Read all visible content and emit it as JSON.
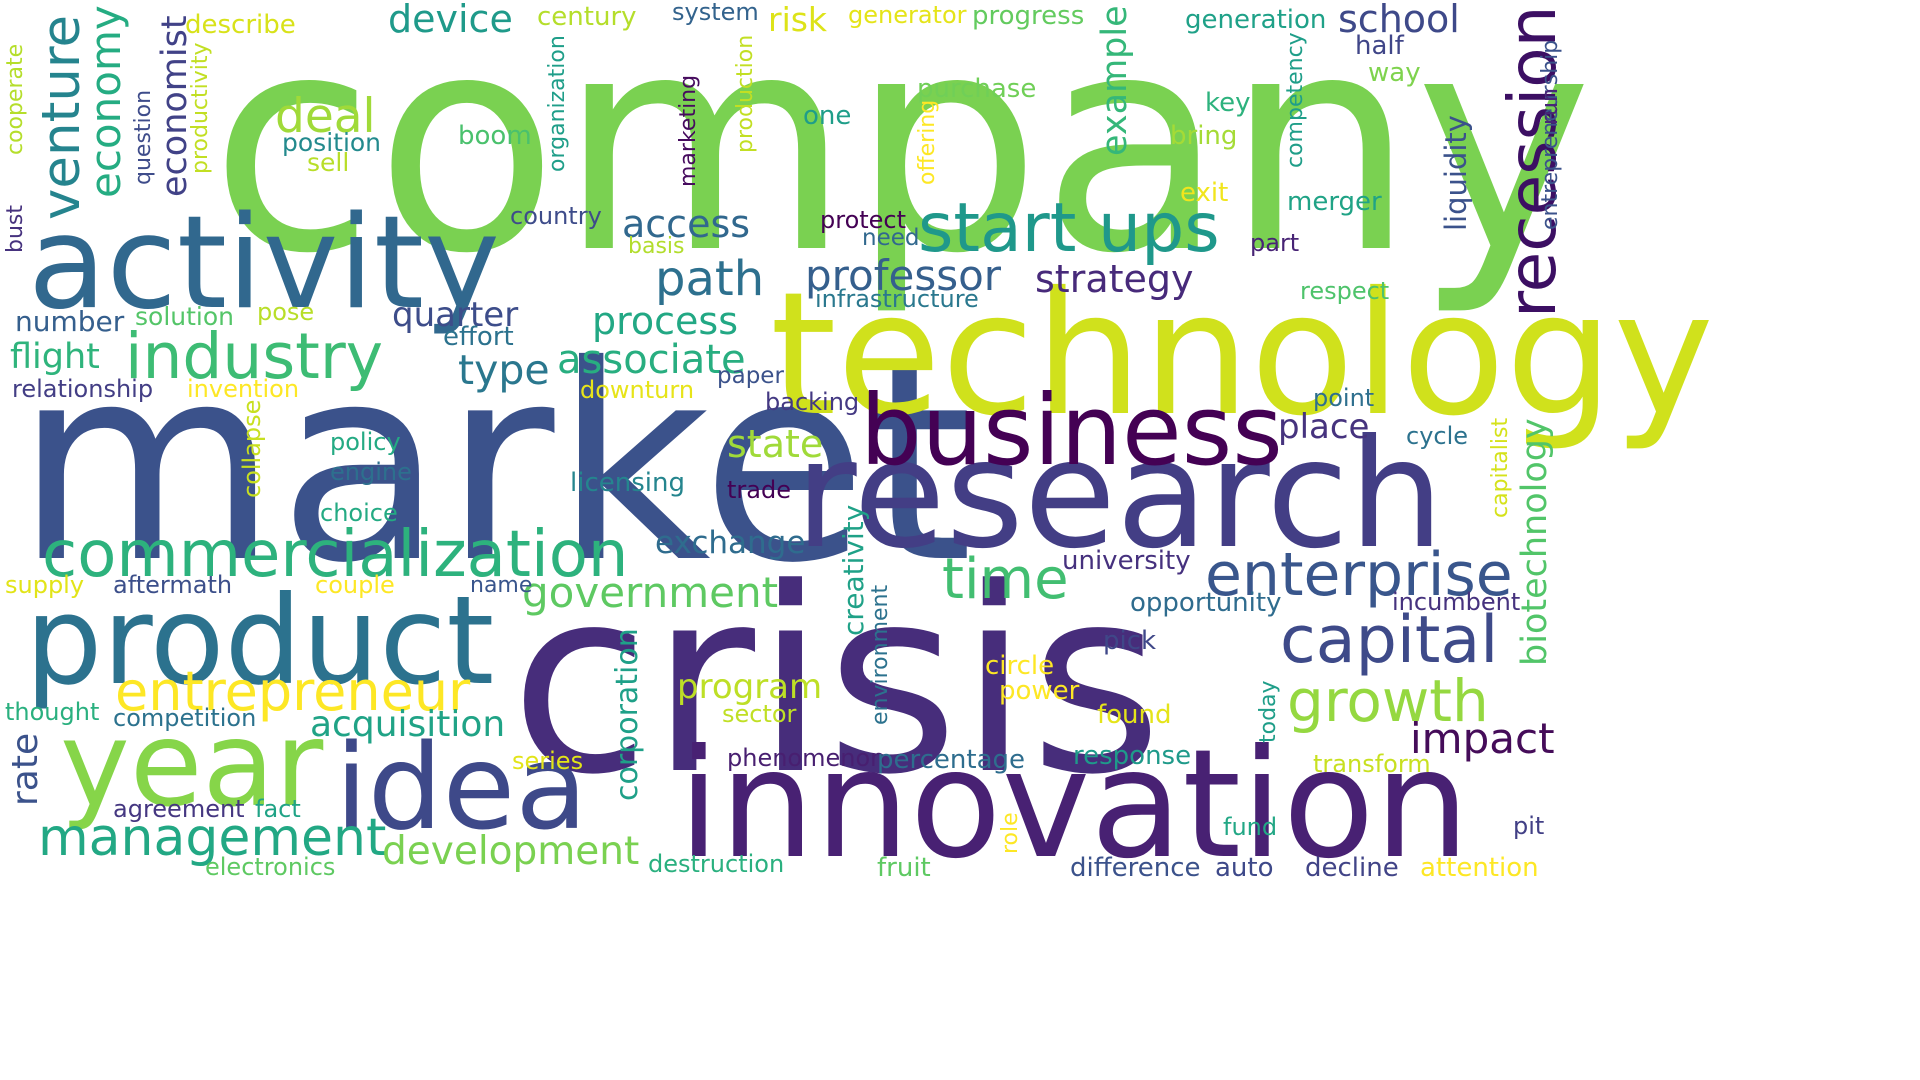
{
  "palette": [
    "#440154",
    "#482677",
    "#3f4a8a",
    "#31678e",
    "#26838f",
    "#1f9d8a",
    "#6cce5a",
    "#b6de2b",
    "#fee825"
  ],
  "words": [
    {
      "text": "company",
      "weight": 1.0,
      "color": "#7ad151",
      "orient": "h"
    },
    {
      "text": "market",
      "weight": 0.96,
      "color": "#3b528b",
      "orient": "h"
    },
    {
      "text": "crisis",
      "weight": 0.93,
      "color": "#472d7b",
      "orient": "h"
    },
    {
      "text": "technology",
      "weight": 0.8,
      "color": "#d0e11c",
      "orient": "h"
    },
    {
      "text": "research",
      "weight": 0.75,
      "color": "#433e85",
      "orient": "h"
    },
    {
      "text": "innovation",
      "weight": 0.75,
      "color": "#482173",
      "orient": "h"
    },
    {
      "text": "activity",
      "weight": 0.64,
      "color": "#31688e",
      "orient": "h"
    },
    {
      "text": "product",
      "weight": 0.6,
      "color": "#2c728e",
      "orient": "h"
    },
    {
      "text": "idea",
      "weight": 0.58,
      "color": "#3e4989",
      "orient": "h"
    },
    {
      "text": "year",
      "weight": 0.56,
      "color": "#86d549",
      "orient": "h"
    },
    {
      "text": "business",
      "weight": 0.48,
      "color": "#440154",
      "orient": "h"
    },
    {
      "text": "commercialization",
      "weight": 0.38,
      "color": "#2db27d",
      "orient": "h"
    },
    {
      "text": "industry",
      "weight": 0.36,
      "color": "#3dbc74",
      "orient": "h"
    },
    {
      "text": "capital",
      "weight": 0.36,
      "color": "#3e4a89",
      "orient": "h"
    },
    {
      "text": "enterprise",
      "weight": 0.34,
      "color": "#39568c",
      "orient": "h"
    },
    {
      "text": "start ups",
      "weight": 0.34,
      "color": "#1f988b",
      "orient": "h"
    },
    {
      "text": "time",
      "weight": 0.33,
      "color": "#42be71",
      "orient": "h"
    },
    {
      "text": "growth",
      "weight": 0.33,
      "color": "#95d840",
      "orient": "h"
    },
    {
      "text": "entrepreneur",
      "weight": 0.32,
      "color": "#fde725",
      "orient": "h"
    },
    {
      "text": "management",
      "weight": 0.3,
      "color": "#22a884",
      "orient": "h"
    },
    {
      "text": "recession",
      "weight": 0.31,
      "color": "#3c0f63",
      "orient": "v"
    },
    {
      "text": "venture",
      "weight": 0.28,
      "color": "#25848e",
      "orient": "v"
    },
    {
      "text": "economy",
      "weight": 0.28,
      "color": "#25ac82",
      "orient": "v"
    },
    {
      "text": "path",
      "weight": 0.27,
      "color": "#2d708e",
      "orient": "h"
    },
    {
      "text": "deal",
      "weight": 0.27,
      "color": "#a0da39",
      "orient": "h"
    },
    {
      "text": "professor",
      "weight": 0.25,
      "color": "#355f8d",
      "orient": "h"
    },
    {
      "text": "impact",
      "weight": 0.25,
      "color": "#450c59",
      "orient": "h"
    },
    {
      "text": "development",
      "weight": 0.23,
      "color": "#7ad151",
      "orient": "h"
    },
    {
      "text": "government",
      "weight": 0.23,
      "color": "#5ec962",
      "orient": "h"
    },
    {
      "text": "acquisition",
      "weight": 0.22,
      "color": "#20a386",
      "orient": "h"
    },
    {
      "text": "type",
      "weight": 0.22,
      "color": "#2a778e",
      "orient": "h"
    },
    {
      "text": "process",
      "weight": 0.22,
      "color": "#22a884",
      "orient": "h"
    },
    {
      "text": "associate",
      "weight": 0.22,
      "color": "#28ae80",
      "orient": "h"
    },
    {
      "text": "access",
      "weight": 0.22,
      "color": "#31688e",
      "orient": "h"
    },
    {
      "text": "strategy",
      "weight": 0.22,
      "color": "#472a7a",
      "orient": "h"
    },
    {
      "text": "state",
      "weight": 0.22,
      "color": "#a0da39",
      "orient": "h"
    },
    {
      "text": "program",
      "weight": 0.2,
      "color": "#bddf26",
      "orient": "h"
    },
    {
      "text": "exchange",
      "weight": 0.2,
      "color": "#2f6c8e",
      "orient": "h"
    },
    {
      "text": "place",
      "weight": 0.2,
      "color": "#46337e",
      "orient": "h"
    },
    {
      "text": "school",
      "weight": 0.22,
      "color": "#3e4989",
      "orient": "h"
    },
    {
      "text": "device",
      "weight": 0.2,
      "color": "#1f9a8a",
      "orient": "h"
    },
    {
      "text": "flight",
      "weight": 0.2,
      "color": "#2fb47c",
      "orient": "h"
    },
    {
      "text": "quarter",
      "weight": 0.2,
      "color": "#3d4d8a",
      "orient": "h"
    },
    {
      "text": "economist",
      "weight": 0.2,
      "color": "#414287",
      "orient": "v"
    },
    {
      "text": "example",
      "weight": 0.2,
      "color": "#35b779",
      "orient": "v"
    },
    {
      "text": "liquidity",
      "weight": 0.18,
      "color": "#3b528b",
      "orient": "v"
    },
    {
      "text": "biotechnology",
      "weight": 0.2,
      "color": "#52c569",
      "orient": "v"
    },
    {
      "text": "creativity",
      "weight": 0.2,
      "color": "#1fa187",
      "orient": "v"
    },
    {
      "text": "corporation",
      "weight": 0.18,
      "color": "#1fa088",
      "orient": "v"
    },
    {
      "text": "rate",
      "weight": 0.2,
      "color": "#3b528b",
      "orient": "v"
    },
    {
      "text": "number",
      "weight": 0.18,
      "color": "#355f8d",
      "orient": "h"
    },
    {
      "text": "risk",
      "weight": 0.17,
      "color": "#dde318",
      "orient": "h"
    },
    {
      "text": "infrastructure",
      "weight": 0.15,
      "color": "#2a788e",
      "orient": "h"
    },
    {
      "text": "generation",
      "weight": 0.15,
      "color": "#1fa188",
      "orient": "h"
    },
    {
      "text": "century",
      "weight": 0.15,
      "color": "#b5de2b",
      "orient": "h"
    },
    {
      "text": "system",
      "weight": 0.15,
      "color": "#33638d",
      "orient": "h"
    },
    {
      "text": "generator",
      "weight": 0.15,
      "color": "#e5e419",
      "orient": "h"
    },
    {
      "text": "progress",
      "weight": 0.15,
      "color": "#63cb5f",
      "orient": "h"
    },
    {
      "text": "describe",
      "weight": 0.15,
      "color": "#d8e219",
      "orient": "h"
    },
    {
      "text": "position",
      "weight": 0.15,
      "color": "#238a8d",
      "orient": "h"
    },
    {
      "text": "sell",
      "weight": 0.15,
      "color": "#b8de29",
      "orient": "h"
    },
    {
      "text": "boom",
      "weight": 0.15,
      "color": "#4ac16d",
      "orient": "h"
    },
    {
      "text": "one",
      "weight": 0.15,
      "color": "#1f9e89",
      "orient": "h"
    },
    {
      "text": "purchase",
      "weight": 0.15,
      "color": "#70cf57",
      "orient": "h"
    },
    {
      "text": "key",
      "weight": 0.15,
      "color": "#2db27d",
      "orient": "h"
    },
    {
      "text": "bring",
      "weight": 0.15,
      "color": "#a5db36",
      "orient": "h"
    },
    {
      "text": "half",
      "weight": 0.15,
      "color": "#404688",
      "orient": "h"
    },
    {
      "text": "way",
      "weight": 0.15,
      "color": "#7fd34e",
      "orient": "h"
    },
    {
      "text": "exit",
      "weight": 0.15,
      "color": "#f1e51d",
      "orient": "h"
    },
    {
      "text": "merger",
      "weight": 0.15,
      "color": "#20a386",
      "orient": "h"
    },
    {
      "text": "country",
      "weight": 0.15,
      "color": "#3e4c8a",
      "orient": "h"
    },
    {
      "text": "protect",
      "weight": 0.15,
      "color": "#440154",
      "orient": "h"
    },
    {
      "text": "need",
      "weight": 0.15,
      "color": "#31688e",
      "orient": "h"
    },
    {
      "text": "basis",
      "weight": 0.15,
      "color": "#b2dd2d",
      "orient": "h"
    },
    {
      "text": "part",
      "weight": 0.15,
      "color": "#482475",
      "orient": "h"
    },
    {
      "text": "respect",
      "weight": 0.15,
      "color": "#4ec36b",
      "orient": "h"
    },
    {
      "text": "solution",
      "weight": 0.15,
      "color": "#54c568",
      "orient": "h"
    },
    {
      "text": "pose",
      "weight": 0.15,
      "color": "#b8de29",
      "orient": "h"
    },
    {
      "text": "effort",
      "weight": 0.15,
      "color": "#2c728e",
      "orient": "h"
    },
    {
      "text": "relationship",
      "weight": 0.15,
      "color": "#433e85",
      "orient": "h"
    },
    {
      "text": "invention",
      "weight": 0.15,
      "color": "#fde725",
      "orient": "h"
    },
    {
      "text": "downturn",
      "weight": 0.15,
      "color": "#e7e419",
      "orient": "h"
    },
    {
      "text": "paper",
      "weight": 0.15,
      "color": "#3b528b",
      "orient": "h"
    },
    {
      "text": "backing",
      "weight": 0.15,
      "color": "#443983",
      "orient": "h"
    },
    {
      "text": "point",
      "weight": 0.15,
      "color": "#2e6f8e",
      "orient": "h"
    },
    {
      "text": "cycle",
      "weight": 0.15,
      "color": "#2c728e",
      "orient": "h"
    },
    {
      "text": "policy",
      "weight": 0.15,
      "color": "#24aa83",
      "orient": "h"
    },
    {
      "text": "engine",
      "weight": 0.15,
      "color": "#2d708e",
      "orient": "h"
    },
    {
      "text": "licensing",
      "weight": 0.15,
      "color": "#25858e",
      "orient": "h"
    },
    {
      "text": "trade",
      "weight": 0.15,
      "color": "#440154",
      "orient": "h"
    },
    {
      "text": "choice",
      "weight": 0.15,
      "color": "#24aa83",
      "orient": "h"
    },
    {
      "text": "university",
      "weight": 0.15,
      "color": "#46317e",
      "orient": "h"
    },
    {
      "text": "supply",
      "weight": 0.15,
      "color": "#e2e418",
      "orient": "h"
    },
    {
      "text": "aftermath",
      "weight": 0.15,
      "color": "#3c4f8a",
      "orient": "h"
    },
    {
      "text": "couple",
      "weight": 0.15,
      "color": "#fde725",
      "orient": "h"
    },
    {
      "text": "name",
      "weight": 0.15,
      "color": "#39558c",
      "orient": "h"
    },
    {
      "text": "opportunity",
      "weight": 0.15,
      "color": "#2f6c8e",
      "orient": "h"
    },
    {
      "text": "incumbent",
      "weight": 0.15,
      "color": "#46327e",
      "orient": "h"
    },
    {
      "text": "pick",
      "weight": 0.15,
      "color": "#3f4788",
      "orient": "h"
    },
    {
      "text": "circle",
      "weight": 0.15,
      "color": "#fde725",
      "orient": "h"
    },
    {
      "text": "power",
      "weight": 0.15,
      "color": "#fde725",
      "orient": "h"
    },
    {
      "text": "found",
      "weight": 0.15,
      "color": "#e5e419",
      "orient": "h"
    },
    {
      "text": "thought",
      "weight": 0.15,
      "color": "#2ab07f",
      "orient": "h"
    },
    {
      "text": "competition",
      "weight": 0.15,
      "color": "#2c728e",
      "orient": "h"
    },
    {
      "text": "sector",
      "weight": 0.15,
      "color": "#c0df25",
      "orient": "h"
    },
    {
      "text": "phenomenon",
      "weight": 0.15,
      "color": "#481f70",
      "orient": "h"
    },
    {
      "text": "percentage",
      "weight": 0.15,
      "color": "#2e6d8e",
      "orient": "h"
    },
    {
      "text": "response",
      "weight": 0.15,
      "color": "#1f9a8a",
      "orient": "h"
    },
    {
      "text": "series",
      "weight": 0.15,
      "color": "#e2e418",
      "orient": "h"
    },
    {
      "text": "transform",
      "weight": 0.15,
      "color": "#c8e020",
      "orient": "h"
    },
    {
      "text": "agreement",
      "weight": 0.15,
      "color": "#453781",
      "orient": "h"
    },
    {
      "text": "fact",
      "weight": 0.15,
      "color": "#20a386",
      "orient": "h"
    },
    {
      "text": "fund",
      "weight": 0.15,
      "color": "#22a785",
      "orient": "h"
    },
    {
      "text": "pit",
      "weight": 0.15,
      "color": "#424086",
      "orient": "h"
    },
    {
      "text": "electronics",
      "weight": 0.15,
      "color": "#5ec962",
      "orient": "h"
    },
    {
      "text": "destruction",
      "weight": 0.15,
      "color": "#2ab07f",
      "orient": "h"
    },
    {
      "text": "fruit",
      "weight": 0.15,
      "color": "#5ec962",
      "orient": "h"
    },
    {
      "text": "difference",
      "weight": 0.15,
      "color": "#3b528b",
      "orient": "h"
    },
    {
      "text": "auto",
      "weight": 0.15,
      "color": "#3e4989",
      "orient": "h"
    },
    {
      "text": "decline",
      "weight": 0.15,
      "color": "#414487",
      "orient": "h"
    },
    {
      "text": "attention",
      "weight": 0.15,
      "color": "#fde725",
      "orient": "h"
    },
    {
      "text": "cooperate",
      "weight": 0.13,
      "color": "#b5de2b",
      "orient": "v"
    },
    {
      "text": "bust",
      "weight": 0.13,
      "color": "#46327e",
      "orient": "v"
    },
    {
      "text": "question",
      "weight": 0.13,
      "color": "#3e4c8a",
      "orient": "v"
    },
    {
      "text": "productivity",
      "weight": 0.13,
      "color": "#c2df23",
      "orient": "v"
    },
    {
      "text": "organization",
      "weight": 0.13,
      "color": "#1f9e89",
      "orient": "v"
    },
    {
      "text": "production",
      "weight": 0.13,
      "color": "#c2df23",
      "orient": "v"
    },
    {
      "text": "marketing",
      "weight": 0.13,
      "color": "#460b5e",
      "orient": "v"
    },
    {
      "text": "offering",
      "weight": 0.13,
      "color": "#fde725",
      "orient": "v"
    },
    {
      "text": "competency",
      "weight": 0.13,
      "color": "#1f9e89",
      "orient": "v"
    },
    {
      "text": "entrepreneurship",
      "weight": 0.13,
      "color": "#3b528b",
      "orient": "v"
    },
    {
      "text": "run",
      "weight": 0.13,
      "color": "#482677",
      "orient": "v"
    },
    {
      "text": "collapse",
      "weight": 0.13,
      "color": "#c8e020",
      "orient": "v"
    },
    {
      "text": "environment",
      "weight": 0.13,
      "color": "#2c728e",
      "orient": "v"
    },
    {
      "text": "today",
      "weight": 0.13,
      "color": "#1f9e89",
      "orient": "v"
    },
    {
      "text": "capitalist",
      "weight": 0.13,
      "color": "#d5e21a",
      "orient": "v"
    },
    {
      "text": "role",
      "weight": 0.13,
      "color": "#fde725",
      "orient": "v"
    }
  ]
}
